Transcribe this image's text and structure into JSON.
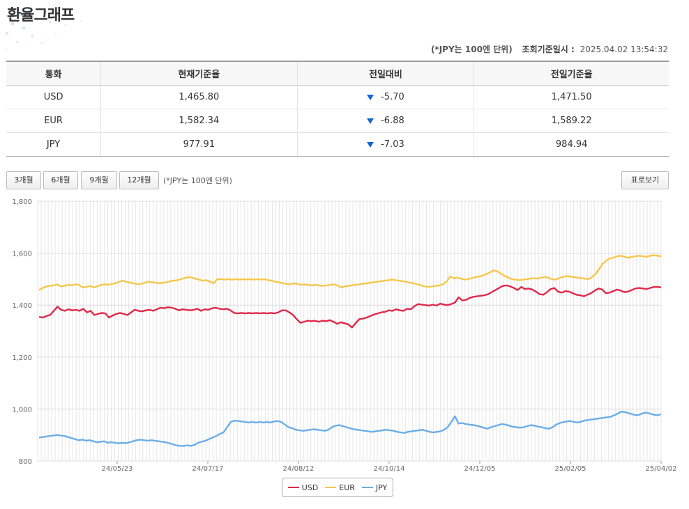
{
  "page_title": "환율그래프",
  "meta": {
    "unit_note": "(*JPY는 100엔 단위)",
    "time_label": "조회기준일시 :",
    "time_value": "2025.04.02 13:54:32"
  },
  "table": {
    "headers": [
      "통화",
      "현재기준율",
      "전일대비",
      "전일기준율"
    ],
    "rows": [
      {
        "currency": "USD",
        "current": "1,465.80",
        "change": "-5.70",
        "previous": "1,471.50"
      },
      {
        "currency": "EUR",
        "current": "1,582.34",
        "change": "-6.88",
        "previous": "1,589.22"
      },
      {
        "currency": "JPY",
        "current": "977.91",
        "change": "-7.03",
        "previous": "984.94"
      }
    ]
  },
  "controls": {
    "periods": [
      "3개월",
      "6개월",
      "9개월",
      "12개월"
    ],
    "unit_note": "(*JPY는 100엔 단위)",
    "table_button": "표로보기"
  },
  "colors": {
    "USD": "#e0284a",
    "EUR": "#f5c74a",
    "JPY": "#6aaee8"
  },
  "chart_data": {
    "type": "line",
    "ylim": [
      800,
      1800
    ],
    "yticks": [
      "800",
      "1,000",
      "1,200",
      "1,400",
      "1,600",
      "1,800"
    ],
    "xticks": [
      "24/05/23",
      "24/07/17",
      "24/08/12",
      "24/10/14",
      "24/12/05",
      "25/02/05",
      "25/04/02"
    ],
    "grid": true,
    "legend": "bottom",
    "series": [
      {
        "name": "USD",
        "values": [
          1355,
          1352,
          1358,
          1362,
          1378,
          1394,
          1382,
          1378,
          1384,
          1380,
          1382,
          1378,
          1386,
          1372,
          1378,
          1362,
          1366,
          1370,
          1368,
          1352,
          1360,
          1366,
          1370,
          1366,
          1362,
          1372,
          1382,
          1378,
          1376,
          1380,
          1382,
          1378,
          1384,
          1390,
          1388,
          1392,
          1390,
          1386,
          1380,
          1384,
          1382,
          1380,
          1382,
          1386,
          1378,
          1384,
          1382,
          1388,
          1390,
          1386,
          1384,
          1386,
          1380,
          1370,
          1368,
          1370,
          1368,
          1370,
          1368,
          1370,
          1368,
          1370,
          1368,
          1370,
          1368,
          1372,
          1380,
          1380,
          1372,
          1362,
          1346,
          1332,
          1336,
          1340,
          1338,
          1340,
          1336,
          1340,
          1338,
          1342,
          1336,
          1328,
          1334,
          1330,
          1326,
          1314,
          1330,
          1346,
          1348,
          1352,
          1358,
          1364,
          1368,
          1372,
          1374,
          1380,
          1378,
          1384,
          1380,
          1378,
          1386,
          1384,
          1396,
          1404,
          1402,
          1400,
          1398,
          1402,
          1398,
          1406,
          1402,
          1400,
          1404,
          1410,
          1430,
          1418,
          1420,
          1428,
          1432,
          1434,
          1436,
          1438,
          1442,
          1450,
          1458,
          1466,
          1474,
          1476,
          1472,
          1466,
          1458,
          1470,
          1462,
          1464,
          1460,
          1452,
          1442,
          1440,
          1450,
          1462,
          1466,
          1452,
          1448,
          1454,
          1452,
          1446,
          1440,
          1438,
          1434,
          1440,
          1446,
          1456,
          1464,
          1460,
          1446,
          1448,
          1454,
          1460,
          1456,
          1450,
          1452,
          1458,
          1464,
          1466,
          1464,
          1462,
          1466,
          1470,
          1470,
          1468
        ]
      },
      {
        "name": "EUR",
        "values": [
          1458,
          1466,
          1472,
          1474,
          1476,
          1480,
          1472,
          1474,
          1478,
          1476,
          1480,
          1478,
          1468,
          1470,
          1474,
          1468,
          1472,
          1478,
          1480,
          1478,
          1482,
          1484,
          1490,
          1494,
          1490,
          1486,
          1484,
          1480,
          1482,
          1486,
          1490,
          1488,
          1486,
          1484,
          1486,
          1488,
          1492,
          1494,
          1496,
          1500,
          1504,
          1508,
          1506,
          1502,
          1498,
          1494,
          1496,
          1490,
          1484,
          1500,
          1500,
          1498,
          1500,
          1498,
          1500,
          1498,
          1500,
          1498,
          1500,
          1498,
          1500,
          1498,
          1500,
          1496,
          1494,
          1490,
          1488,
          1484,
          1482,
          1480,
          1484,
          1482,
          1478,
          1480,
          1478,
          1476,
          1478,
          1476,
          1474,
          1476,
          1478,
          1480,
          1476,
          1468,
          1472,
          1474,
          1476,
          1478,
          1480,
          1482,
          1484,
          1486,
          1488,
          1490,
          1492,
          1494,
          1496,
          1498,
          1496,
          1494,
          1492,
          1490,
          1486,
          1484,
          1480,
          1476,
          1472,
          1470,
          1472,
          1474,
          1476,
          1480,
          1490,
          1510,
          1504,
          1506,
          1502,
          1498,
          1500,
          1504,
          1508,
          1510,
          1514,
          1520,
          1526,
          1534,
          1530,
          1520,
          1512,
          1506,
          1500,
          1498,
          1496,
          1498,
          1500,
          1502,
          1504,
          1502,
          1506,
          1508,
          1506,
          1500,
          1498,
          1504,
          1508,
          1512,
          1510,
          1508,
          1506,
          1504,
          1502,
          1500,
          1508,
          1520,
          1540,
          1560,
          1572,
          1580,
          1584,
          1588,
          1590,
          1586,
          1582,
          1586,
          1588,
          1590,
          1588,
          1586,
          1590,
          1592,
          1590,
          1588
        ]
      },
      {
        "name": "JPY",
        "values": [
          890,
          892,
          894,
          896,
          898,
          900,
          898,
          896,
          892,
          888,
          884,
          880,
          882,
          878,
          880,
          876,
          872,
          874,
          876,
          870,
          872,
          870,
          868,
          870,
          868,
          872,
          876,
          880,
          882,
          880,
          878,
          880,
          878,
          876,
          874,
          872,
          868,
          864,
          860,
          858,
          858,
          860,
          858,
          862,
          870,
          874,
          878,
          884,
          890,
          896,
          904,
          910,
          930,
          950,
          955,
          954,
          952,
          950,
          948,
          950,
          948,
          950,
          948,
          950,
          948,
          952,
          954,
          950,
          940,
          930,
          926,
          920,
          918,
          916,
          918,
          920,
          922,
          920,
          918,
          916,
          920,
          930,
          936,
          938,
          934,
          930,
          926,
          922,
          920,
          918,
          916,
          914,
          912,
          914,
          916,
          918,
          920,
          918,
          916,
          912,
          910,
          908,
          912,
          914,
          916,
          918,
          920,
          916,
          912,
          910,
          912,
          914,
          920,
          930,
          950,
          972,
          944,
          946,
          942,
          940,
          938,
          936,
          932,
          928,
          924,
          930,
          934,
          938,
          942,
          940,
          936,
          932,
          930,
          928,
          930,
          934,
          938,
          936,
          932,
          930,
          926,
          924,
          930,
          940,
          946,
          950,
          952,
          954,
          950,
          948,
          952,
          956,
          958,
          960,
          962,
          964,
          966,
          968,
          970,
          976,
          982,
          990,
          988,
          984,
          980,
          976,
          978,
          984,
          986,
          982,
          978,
          976,
          980
        ]
      }
    ]
  }
}
